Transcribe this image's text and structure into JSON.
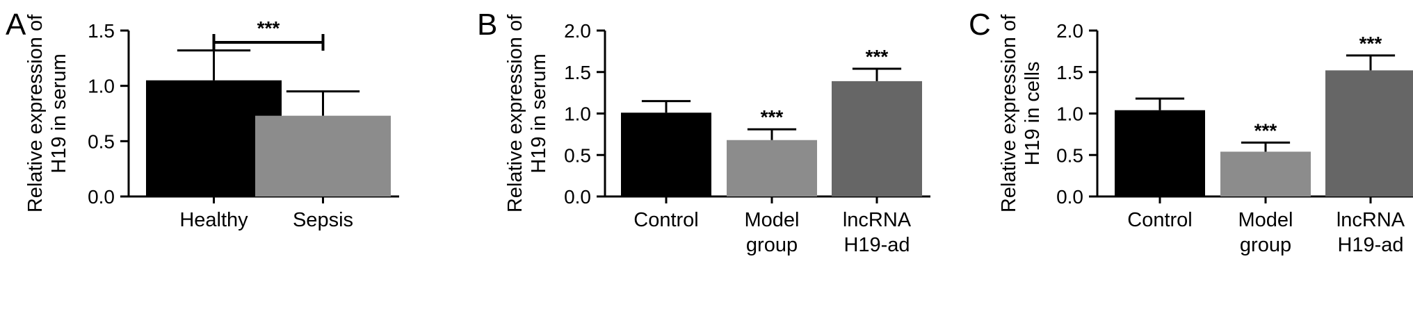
{
  "chart_data": [
    {
      "type": "bar",
      "panel_label": "A",
      "ylabel": [
        "Relative expression of",
        "H19 in serum"
      ],
      "ylim": [
        0,
        1.5
      ],
      "yticks": [
        "0.0",
        "0.5",
        "1.0",
        "1.5"
      ],
      "categories": [
        [
          "Healthy"
        ],
        [
          "Sepsis"
        ]
      ],
      "values": [
        1.05,
        0.73
      ],
      "errors": [
        0.27,
        0.22
      ],
      "colors": [
        "#000000",
        "#8c8c8c"
      ],
      "bracket": {
        "from": 0,
        "to": 1,
        "label": "***"
      },
      "bar_labels": [
        "",
        ""
      ]
    },
    {
      "type": "bar",
      "panel_label": "B",
      "ylabel": [
        "Relative expression of",
        "H19 in serum"
      ],
      "ylim": [
        0,
        2.0
      ],
      "yticks": [
        "0.0",
        "0.5",
        "1.0",
        "1.5",
        "2.0"
      ],
      "categories": [
        [
          "Control"
        ],
        [
          "Model",
          "group"
        ],
        [
          "lncRNA",
          "H19-ad"
        ]
      ],
      "values": [
        1.01,
        0.68,
        1.39
      ],
      "errors": [
        0.14,
        0.13,
        0.15
      ],
      "colors": [
        "#000000",
        "#8c8c8c",
        "#666666"
      ],
      "bracket": null,
      "bar_labels": [
        "",
        "***",
        "***"
      ]
    },
    {
      "type": "bar",
      "panel_label": "C",
      "ylabel": [
        "Relative expression of",
        "H19 in cells"
      ],
      "ylim": [
        0,
        2.0
      ],
      "yticks": [
        "0.0",
        "0.5",
        "1.0",
        "1.5",
        "2.0"
      ],
      "categories": [
        [
          "Control"
        ],
        [
          "Model",
          "group"
        ],
        [
          "lncRNA",
          "H19-ad"
        ]
      ],
      "values": [
        1.04,
        0.54,
        1.52
      ],
      "errors": [
        0.14,
        0.11,
        0.18
      ],
      "colors": [
        "#000000",
        "#8c8c8c",
        "#666666"
      ],
      "bracket": null,
      "bar_labels": [
        "",
        "***",
        "***"
      ]
    }
  ]
}
